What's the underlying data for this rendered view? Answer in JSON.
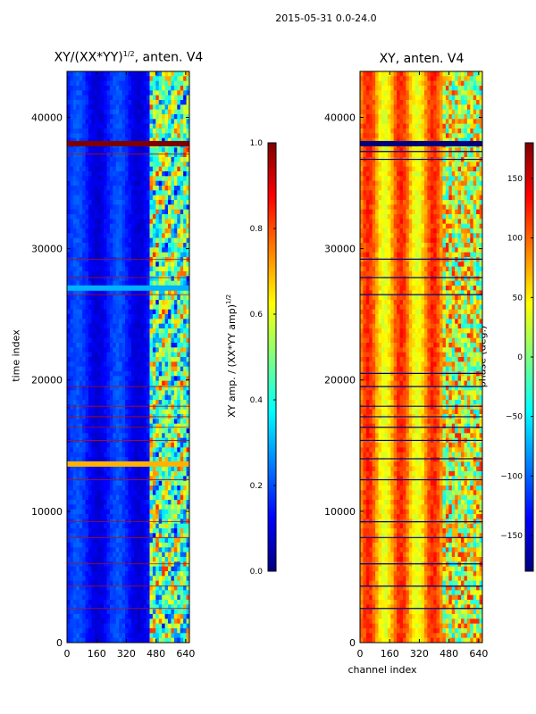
{
  "figure_title": "2015-05-31 0.0-24.0",
  "chart_data": [
    {
      "type": "heatmap",
      "title_base": "XY/(XX*YY)",
      "title_exponent": "1/2",
      "title_suffix": ", anten. V4",
      "xlabel": "",
      "ylabel": "time index",
      "xlim": [
        0,
        660
      ],
      "ylim": [
        0,
        43500
      ],
      "xticks": [
        0,
        160,
        320,
        480,
        640
      ],
      "yticks": [
        0,
        10000,
        20000,
        30000,
        40000
      ],
      "colormap": "jet",
      "colorbar": {
        "label_base": "XY amp. / (XX*YY amp)",
        "label_exponent": "1/2",
        "range": [
          0.0,
          1.0
        ],
        "ticks": [
          0.0,
          0.2,
          0.4,
          0.6,
          0.8,
          1.0
        ],
        "tick_labels": [
          "0.0",
          "0.2",
          "0.4",
          "0.6",
          "0.8",
          "1.0"
        ]
      },
      "notable_rows": [
        {
          "time_index": 38000,
          "value": 1.0
        },
        {
          "time_index": 27000,
          "value": 0.3
        },
        {
          "time_index": 13600,
          "value": 0.7
        }
      ],
      "high_value_channels": [
        440,
        660
      ]
    },
    {
      "type": "heatmap",
      "title": "XY, anten. V4",
      "xlabel": "channel index",
      "ylabel": "",
      "xlim": [
        0,
        660
      ],
      "ylim": [
        0,
        43500
      ],
      "xticks": [
        0,
        160,
        320,
        480,
        640
      ],
      "yticks": [
        0,
        10000,
        20000,
        30000,
        40000
      ],
      "colormap": "jet",
      "colorbar": {
        "label": "phase (deg.)",
        "range": [
          -180,
          180
        ],
        "ticks": [
          -150,
          -100,
          -50,
          0,
          50,
          100,
          150
        ],
        "tick_labels": [
          "−150",
          "−100",
          "−50",
          "0",
          "50",
          "100",
          "150"
        ]
      },
      "notable_rows": [
        {
          "time_index": 38000,
          "value": -180
        }
      ]
    }
  ],
  "colors": {
    "jet": [
      "#00007f",
      "#0000ff",
      "#007fff",
      "#00ffff",
      "#7fff7f",
      "#ffff00",
      "#ff7f00",
      "#ff0000",
      "#7f0000"
    ]
  }
}
